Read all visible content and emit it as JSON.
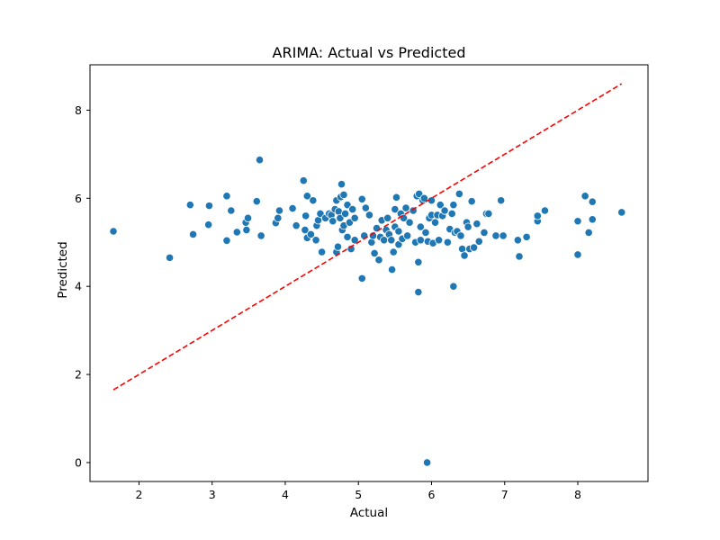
{
  "chart_data": {
    "type": "scatter",
    "title": "ARIMA: Actual vs Predicted",
    "xlabel": "Actual",
    "ylabel": "Predicted",
    "xlim": [
      1.33,
      8.96
    ],
    "ylim": [
      -0.43,
      9.03
    ],
    "xticks": [
      2,
      3,
      4,
      5,
      6,
      7,
      8
    ],
    "yticks": [
      0,
      2,
      4,
      6,
      8
    ],
    "grid": false,
    "point_color": "#1f77b4",
    "reference_line": {
      "x": [
        1.65,
        8.6
      ],
      "y": [
        1.65,
        8.6
      ],
      "color": "#ff0000",
      "style": "dashed"
    },
    "points": [
      [
        1.65,
        5.25
      ],
      [
        2.42,
        4.65
      ],
      [
        2.7,
        5.85
      ],
      [
        2.74,
        5.18
      ],
      [
        2.95,
        5.4
      ],
      [
        2.96,
        5.83
      ],
      [
        3.2,
        6.05
      ],
      [
        3.2,
        5.04
      ],
      [
        3.26,
        5.72
      ],
      [
        3.34,
        5.23
      ],
      [
        3.46,
        5.45
      ],
      [
        3.47,
        5.28
      ],
      [
        3.49,
        5.55
      ],
      [
        3.61,
        5.93
      ],
      [
        3.65,
        6.87
      ],
      [
        3.67,
        5.15
      ],
      [
        3.87,
        5.44
      ],
      [
        3.9,
        5.55
      ],
      [
        3.92,
        5.72
      ],
      [
        4.1,
        5.77
      ],
      [
        4.15,
        5.38
      ],
      [
        4.25,
        6.4
      ],
      [
        4.27,
        5.28
      ],
      [
        4.28,
        5.6
      ],
      [
        4.3,
        5.1
      ],
      [
        4.3,
        6.05
      ],
      [
        4.35,
        5.18
      ],
      [
        4.38,
        5.95
      ],
      [
        4.42,
        5.05
      ],
      [
        4.43,
        5.38
      ],
      [
        4.45,
        5.5
      ],
      [
        4.48,
        5.65
      ],
      [
        4.5,
        4.78
      ],
      [
        4.55,
        5.55
      ],
      [
        4.6,
        5.65
      ],
      [
        4.63,
        5.62
      ],
      [
        4.65,
        5.48
      ],
      [
        4.68,
        5.75
      ],
      [
        4.7,
        4.78
      ],
      [
        4.7,
        5.95
      ],
      [
        4.72,
        4.9
      ],
      [
        4.73,
        5.7
      ],
      [
        4.75,
        5.55
      ],
      [
        4.76,
        6.03
      ],
      [
        4.77,
        6.32
      ],
      [
        4.78,
        5.28
      ],
      [
        4.8,
        6.08
      ],
      [
        4.8,
        5.38
      ],
      [
        4.82,
        5.65
      ],
      [
        4.85,
        5.12
      ],
      [
        4.85,
        5.85
      ],
      [
        4.88,
        5.45
      ],
      [
        4.9,
        4.85
      ],
      [
        4.92,
        5.75
      ],
      [
        4.95,
        5.55
      ],
      [
        4.95,
        5.05
      ],
      [
        5.05,
        5.98
      ],
      [
        5.05,
        4.18
      ],
      [
        5.08,
        5.15
      ],
      [
        5.1,
        5.78
      ],
      [
        5.15,
        5.62
      ],
      [
        5.18,
        5.0
      ],
      [
        5.2,
        5.15
      ],
      [
        5.22,
        4.75
      ],
      [
        5.25,
        5.32
      ],
      [
        5.28,
        4.6
      ],
      [
        5.3,
        5.12
      ],
      [
        5.32,
        5.5
      ],
      [
        5.35,
        5.05
      ],
      [
        5.38,
        5.28
      ],
      [
        5.4,
        5.55
      ],
      [
        5.42,
        5.18
      ],
      [
        5.45,
        5.05
      ],
      [
        5.46,
        4.38
      ],
      [
        5.48,
        4.78
      ],
      [
        5.5,
        5.35
      ],
      [
        5.5,
        5.75
      ],
      [
        5.52,
        6.02
      ],
      [
        5.55,
        4.95
      ],
      [
        5.55,
        5.25
      ],
      [
        5.58,
        5.65
      ],
      [
        5.6,
        5.08
      ],
      [
        5.62,
        5.55
      ],
      [
        5.65,
        5.78
      ],
      [
        5.67,
        5.15
      ],
      [
        5.7,
        5.45
      ],
      [
        5.75,
        5.72
      ],
      [
        5.78,
        5.0
      ],
      [
        5.8,
        6.05
      ],
      [
        5.82,
        3.87
      ],
      [
        5.82,
        4.55
      ],
      [
        5.83,
        6.1
      ],
      [
        5.85,
        5.35
      ],
      [
        5.85,
        5.05
      ],
      [
        5.88,
        5.95
      ],
      [
        5.9,
        6.0
      ],
      [
        5.92,
        5.22
      ],
      [
        5.94,
        0.0
      ],
      [
        5.95,
        5.02
      ],
      [
        5.97,
        5.55
      ],
      [
        6.0,
        5.95
      ],
      [
        6.0,
        5.62
      ],
      [
        6.02,
        4.98
      ],
      [
        6.05,
        5.45
      ],
      [
        6.08,
        5.62
      ],
      [
        6.1,
        5.05
      ],
      [
        6.12,
        5.85
      ],
      [
        6.15,
        5.6
      ],
      [
        6.18,
        5.72
      ],
      [
        6.22,
        5.0
      ],
      [
        6.25,
        5.3
      ],
      [
        6.28,
        5.65
      ],
      [
        6.3,
        5.85
      ],
      [
        6.3,
        4.0
      ],
      [
        6.32,
        5.22
      ],
      [
        6.35,
        5.25
      ],
      [
        6.38,
        6.1
      ],
      [
        6.4,
        5.15
      ],
      [
        6.42,
        4.85
      ],
      [
        6.45,
        4.7
      ],
      [
        6.48,
        5.45
      ],
      [
        6.5,
        5.35
      ],
      [
        6.52,
        4.85
      ],
      [
        6.55,
        5.93
      ],
      [
        6.58,
        4.88
      ],
      [
        6.62,
        5.42
      ],
      [
        6.65,
        5.02
      ],
      [
        6.72,
        5.22
      ],
      [
        6.75,
        5.65
      ],
      [
        6.78,
        5.65
      ],
      [
        6.88,
        5.15
      ],
      [
        6.95,
        5.95
      ],
      [
        6.98,
        5.15
      ],
      [
        7.18,
        5.05
      ],
      [
        7.2,
        4.68
      ],
      [
        7.3,
        5.12
      ],
      [
        7.45,
        5.48
      ],
      [
        7.45,
        5.6
      ],
      [
        7.55,
        5.72
      ],
      [
        8.0,
        4.72
      ],
      [
        8.0,
        5.48
      ],
      [
        8.1,
        6.05
      ],
      [
        8.15,
        5.22
      ],
      [
        8.2,
        5.52
      ],
      [
        8.2,
        5.92
      ],
      [
        8.6,
        5.68
      ]
    ]
  }
}
